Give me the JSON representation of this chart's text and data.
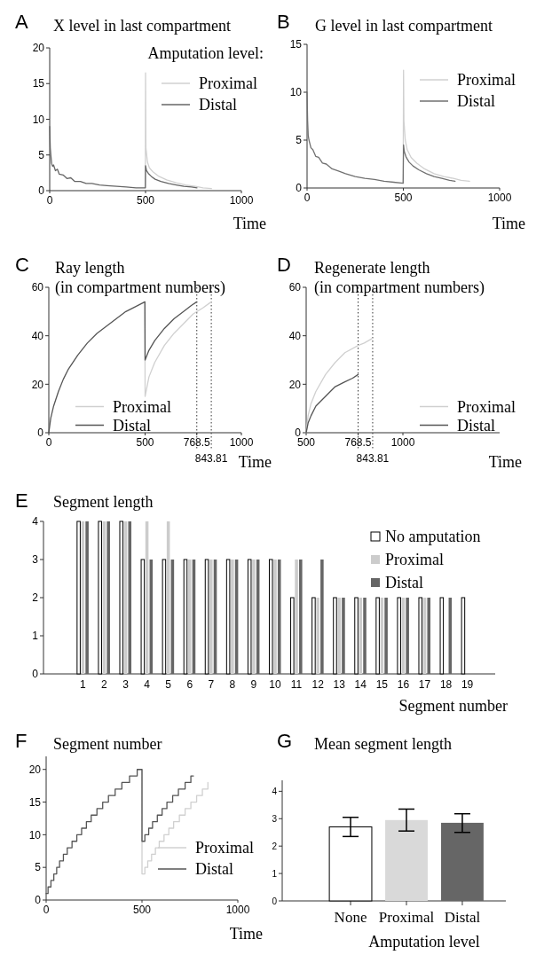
{
  "chart_data": [
    {
      "type": "line",
      "title": "X level in last compartment",
      "xlabel": "Time",
      "legend_title": "Amputation level:",
      "annotations": [
        "A"
      ],
      "xlim": [
        0,
        1000
      ],
      "xticks": [
        0,
        500,
        1000
      ],
      "ylim": [
        0,
        20
      ],
      "yticks": [
        0,
        5,
        10,
        15,
        20
      ],
      "legend": "top right",
      "series": [
        {
          "name": "Proximal",
          "color": "#d0d0d0",
          "x": [
            499,
            500,
            502,
            510,
            520,
            540,
            570,
            610,
            660,
            710,
            760,
            800,
            843.81
          ],
          "values": [
            0.4,
            16.5,
            6,
            4,
            3.2,
            2.6,
            2.0,
            1.5,
            1.1,
            0.8,
            0.6,
            0.4,
            0.3
          ]
        },
        {
          "name": "Distal",
          "color": "#666666",
          "x": [
            0,
            3,
            6,
            10,
            15,
            20,
            30,
            40,
            50,
            70,
            90,
            110,
            130,
            160,
            190,
            220,
            260,
            300,
            350,
            400,
            450,
            499,
            500,
            505,
            515,
            530,
            550,
            580,
            620,
            660,
            700,
            740,
            768.5
          ],
          "values": [
            9,
            6,
            5,
            3.8,
            3.4,
            3.6,
            2.8,
            3.0,
            2.3,
            2.2,
            1.7,
            1.8,
            1.3,
            1.3,
            1.0,
            1.0,
            0.8,
            0.7,
            0.6,
            0.5,
            0.4,
            0.4,
            3.5,
            2.8,
            2.4,
            2.0,
            1.6,
            1.3,
            1.0,
            0.8,
            0.6,
            0.5,
            0.4
          ]
        }
      ]
    },
    {
      "type": "line",
      "title": "G level in last compartment",
      "xlabel": "Time",
      "annotations": [
        "B"
      ],
      "xlim": [
        0,
        1000
      ],
      "xticks": [
        0,
        500,
        1000
      ],
      "ylim": [
        0,
        15
      ],
      "yticks": [
        0,
        5,
        10,
        15
      ],
      "legend": "top right",
      "series": [
        {
          "name": "Proximal",
          "color": "#d0d0d0",
          "x": [
            499,
            501,
            503,
            510,
            520,
            540,
            570,
            610,
            660,
            710,
            760,
            800,
            843.81
          ],
          "values": [
            0.5,
            12.3,
            7,
            5,
            4,
            3.2,
            2.6,
            2.0,
            1.5,
            1.2,
            1.0,
            0.8,
            0.7
          ]
        },
        {
          "name": "Distal",
          "color": "#707070",
          "x": [
            0,
            3,
            6,
            10,
            20,
            30,
            45,
            60,
            80,
            100,
            130,
            160,
            200,
            250,
            300,
            350,
            400,
            450,
            499,
            501,
            505,
            515,
            530,
            550,
            580,
            620,
            660,
            700,
            740,
            768.5
          ],
          "values": [
            10,
            7,
            5.5,
            5,
            4.2,
            4.0,
            3.3,
            3.2,
            2.6,
            2.5,
            2.0,
            1.8,
            1.5,
            1.2,
            1.0,
            0.9,
            0.7,
            0.6,
            0.5,
            4.5,
            3.8,
            3.2,
            2.7,
            2.3,
            1.9,
            1.5,
            1.2,
            1.0,
            0.8,
            0.7
          ]
        }
      ]
    },
    {
      "type": "line",
      "title": "Ray length\n(in compartment numbers)",
      "xlabel": "Time",
      "annotations": [
        "C"
      ],
      "xlim": [
        0,
        1000
      ],
      "xticks": [
        0,
        500,
        768.5,
        1000
      ],
      "ylim": [
        0,
        60
      ],
      "yticks": [
        0,
        20,
        40,
        60
      ],
      "legend": "bottom left",
      "ref_lines": [
        {
          "axis": "x",
          "value": 768.5,
          "line_style": "dotted",
          "color": "#333333"
        },
        {
          "axis": "x",
          "value": 843.81,
          "line_style": "dotted",
          "color": "#333333",
          "label": "843.81"
        }
      ],
      "series": [
        {
          "name": "Proximal",
          "color": "#d0d0d0",
          "x": [
            499,
            500,
            520,
            550,
            600,
            650,
            700,
            750,
            800,
            843.81
          ],
          "values": [
            54,
            15,
            23,
            29,
            36,
            41,
            45,
            49,
            51.5,
            54
          ]
        },
        {
          "name": "Distal",
          "color": "#555555",
          "x": [
            0,
            10,
            25,
            50,
            75,
            100,
            150,
            200,
            250,
            300,
            350,
            400,
            450,
            499,
            500,
            520,
            550,
            600,
            650,
            700,
            740,
            768.5
          ],
          "values": [
            0,
            6,
            11,
            17,
            22,
            26,
            32,
            37,
            41,
            44,
            47,
            50,
            52,
            54,
            30,
            34,
            38,
            43,
            47,
            50,
            52.5,
            54
          ]
        }
      ]
    },
    {
      "type": "line",
      "title": "Regenerate length\n(in compartment numbers)",
      "xlabel": "Time",
      "annotations": [
        "D"
      ],
      "xlim": [
        500,
        1500
      ],
      "xticks": [
        500,
        768.5,
        1000
      ],
      "ylim": [
        0,
        60
      ],
      "yticks": [
        0,
        20,
        40,
        60
      ],
      "legend": "bottom right",
      "ref_lines": [
        {
          "axis": "x",
          "value": 768.5,
          "line_style": "dotted",
          "color": "#333333"
        },
        {
          "axis": "x",
          "value": 843.81,
          "line_style": "dotted",
          "color": "#333333",
          "label": "843.81"
        }
      ],
      "series": [
        {
          "name": "Proximal",
          "color": "#d0d0d0",
          "x": [
            500,
            510,
            525,
            550,
            600,
            650,
            700,
            768.5,
            800,
            843.81
          ],
          "values": [
            0,
            7,
            12,
            17,
            24,
            29,
            33,
            36,
            37,
            39
          ]
        },
        {
          "name": "Distal",
          "color": "#555555",
          "x": [
            500,
            510,
            525,
            550,
            600,
            650,
            700,
            740,
            768.5
          ],
          "values": [
            0,
            4,
            7,
            11,
            15,
            19,
            21,
            22.5,
            24
          ]
        }
      ]
    },
    {
      "type": "bar",
      "title": "Segment length",
      "xlabel": "Segment number",
      "annotations": [
        "E"
      ],
      "categories": [
        "1",
        "2",
        "3",
        "4",
        "5",
        "6",
        "7",
        "8",
        "9",
        "10",
        "11",
        "12",
        "13",
        "14",
        "15",
        "16",
        "17",
        "18",
        "19"
      ],
      "ylim": [
        0,
        4
      ],
      "yticks": [
        0,
        1,
        2,
        3,
        4
      ],
      "legend": "top right",
      "series": [
        {
          "name": "No amputation",
          "color": "#ffffff",
          "values": [
            4,
            4,
            4,
            3,
            3,
            3,
            3,
            3,
            3,
            3,
            2,
            2,
            2,
            2,
            2,
            2,
            2,
            2,
            2
          ]
        },
        {
          "name": "Proximal",
          "color": "#cccccc",
          "values": [
            4,
            4,
            4,
            4,
            4,
            3,
            3,
            3,
            3,
            3,
            3,
            2,
            2,
            2,
            2,
            2,
            2,
            null,
            null
          ]
        },
        {
          "name": "Distal",
          "color": "#666666",
          "values": [
            4,
            4,
            4,
            3,
            3,
            3,
            3,
            3,
            3,
            3,
            3,
            3,
            2,
            2,
            2,
            2,
            2,
            2,
            null
          ]
        }
      ]
    },
    {
      "type": "step",
      "title": "Segment number",
      "xlabel": "Time",
      "annotations": [
        "F"
      ],
      "xlim": [
        0,
        1000
      ],
      "xticks": [
        0,
        500,
        1000
      ],
      "ylim": [
        0,
        22
      ],
      "yticks": [
        0,
        5,
        10,
        15,
        20
      ],
      "legend": "right",
      "series": [
        {
          "name": "Proximal",
          "color": "#d0d0d0",
          "x": [
            475,
            500,
            515,
            530,
            550,
            570,
            590,
            615,
            640,
            665,
            695,
            725,
            755,
            785,
            815,
            843.81
          ],
          "values": [
            20,
            4,
            5,
            6,
            7,
            8,
            9,
            10,
            11,
            12,
            13,
            14,
            15,
            16,
            17,
            18
          ]
        },
        {
          "name": "Distal",
          "color": "#555555",
          "x": [
            0,
            10,
            25,
            40,
            55,
            70,
            90,
            110,
            135,
            160,
            185,
            210,
            235,
            265,
            295,
            325,
            360,
            395,
            435,
            475,
            500,
            515,
            535,
            555,
            580,
            605,
            630,
            660,
            690,
            725,
            755,
            768.5
          ],
          "values": [
            1,
            2,
            3,
            4,
            5,
            6,
            7,
            8,
            9,
            10,
            11,
            12,
            13,
            14,
            15,
            16,
            17,
            18,
            19,
            20,
            9,
            10,
            11,
            12,
            13,
            14,
            15,
            16,
            17,
            18,
            19,
            19
          ]
        }
      ]
    },
    {
      "type": "bar",
      "title": "Mean segment length",
      "xlabel": "Amputation level",
      "annotations": [
        "G"
      ],
      "categories": [
        "None",
        "Proximal",
        "Distal"
      ],
      "values": [
        2.7,
        2.95,
        2.85
      ],
      "colors": [
        "#ffffff",
        "#d9d9d9",
        "#666666"
      ],
      "errors": [
        [
          2.35,
          3.05
        ],
        [
          2.55,
          3.35
        ],
        [
          2.5,
          3.18
        ]
      ],
      "ylim": [
        0,
        4.4
      ],
      "yticks": [
        0,
        1,
        2,
        3,
        4
      ]
    }
  ]
}
